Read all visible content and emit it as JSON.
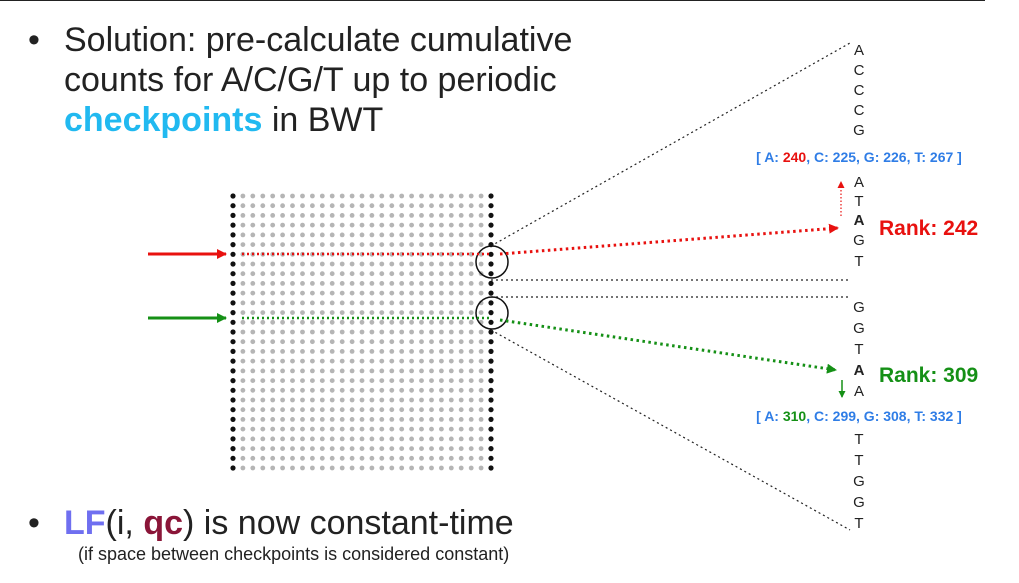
{
  "bullet1": {
    "marker": "•",
    "line1": "Solution: pre-calculate cumulative",
    "line2": "counts for A/C/G/T up to periodic",
    "keyword": "checkpoints",
    "line3_rest": " in BWT"
  },
  "bullet2": {
    "marker": "•",
    "lf": "LF",
    "open": "(i, ",
    "qc": "qc",
    "rest": ") is now constant-time",
    "note": "(if space between checkpoints is considered constant)"
  },
  "colors": {
    "red": "#e8110f",
    "green": "#159016",
    "blue": "#2f7de6",
    "cyan": "#21b9f0"
  },
  "column_top": [
    "A",
    "C",
    "C",
    "C",
    "G"
  ],
  "checkpoint1": {
    "open": "[ A: ",
    "a_val": "240",
    "rest": ", C: 225, G: 226, T: 267 ]"
  },
  "column_mid1": [
    "A",
    "T"
  ],
  "highlight1": "A",
  "column_mid1_after": [
    "G",
    "T"
  ],
  "rank1": "Rank: 242",
  "column_mid2": [
    "G",
    "G",
    "T"
  ],
  "highlight2": "A",
  "column_mid2_after": [
    "A"
  ],
  "rank2": "Rank: 309",
  "checkpoint2": {
    "open": "[ A: ",
    "a_val": "310",
    "rest": ", C: 299, G: 308, T: 332 ]"
  },
  "column_bottom": [
    "T",
    "T",
    "G",
    "G",
    "T"
  ]
}
